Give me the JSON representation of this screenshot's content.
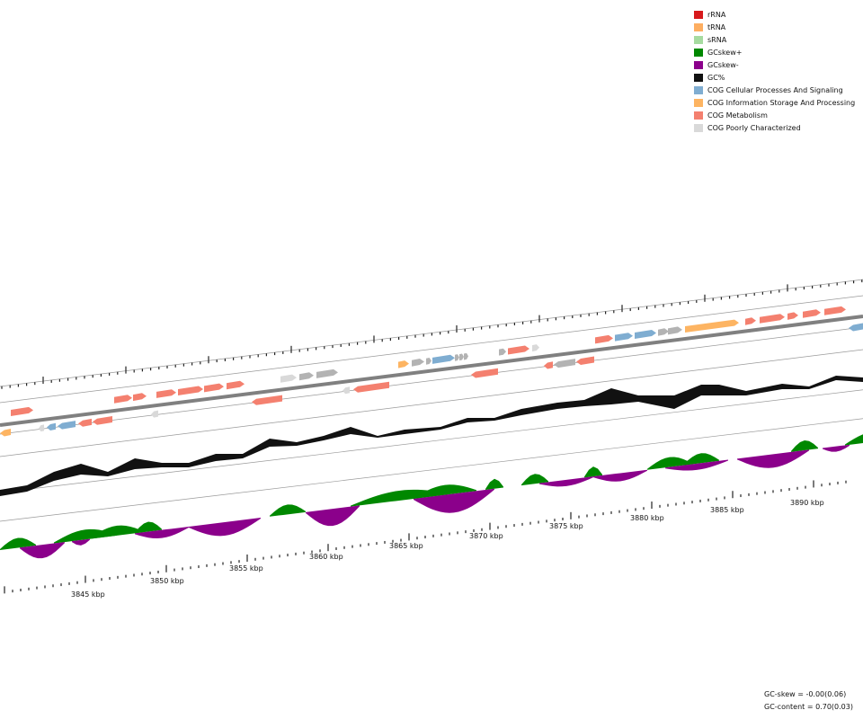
{
  "legend": {
    "items": [
      {
        "label": "rRNA",
        "color": "#d7191c"
      },
      {
        "label": "tRNA",
        "color": "#fdae61"
      },
      {
        "label": "sRNA",
        "color": "#a6dba0"
      },
      {
        "label": "GCskew+",
        "color": "#008800"
      },
      {
        "label": "GCskew-",
        "color": "#8b008b"
      },
      {
        "label": "GC%",
        "color": "#111111"
      },
      {
        "label": "COG Cellular Processes And Signaling",
        "color": "#7fadd1"
      },
      {
        "label": "COG Information Storage And Processing",
        "color": "#fdb462"
      },
      {
        "label": "COG Metabolism",
        "color": "#f4806f"
      },
      {
        "label": "COG Poorly Characterized",
        "color": "#d9d9d9"
      }
    ]
  },
  "scale": {
    "ticks": [
      "3845 kbp",
      "3850 kbp",
      "3855 kbp",
      "3860 kbp",
      "3865 kbp",
      "3870 kbp",
      "3875 kbp",
      "3880 kbp",
      "3885 kbp",
      "3890 kbp"
    ]
  },
  "stats": {
    "gc_skew": "GC-skew = -0.00(0.06)",
    "gc_content": "GC-content = 0.70(0.03)"
  }
}
